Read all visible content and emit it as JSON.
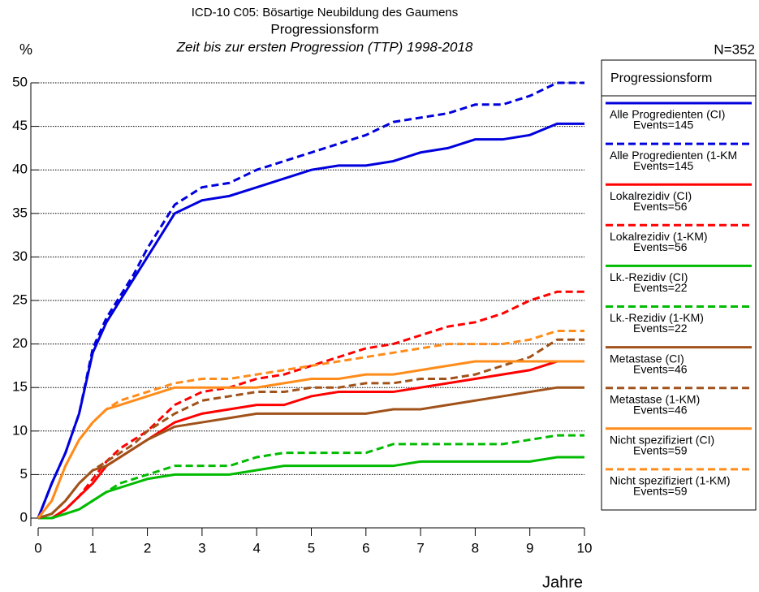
{
  "chart_data": {
    "type": "line",
    "title": "ICD-10 C05: Bösartige Neubildung des Gaumens",
    "subtitle": "Progressionsform",
    "subtitle2": "Zeit bis zur ersten Progression (TTP) 1998-2018",
    "y_label": "%",
    "x_label": "Jahre",
    "n_label": "N=352",
    "legend_title": "Progressionsform",
    "xlim": [
      0,
      10
    ],
    "xticks": [
      0,
      1,
      2,
      3,
      4,
      5,
      6,
      7,
      8,
      9,
      10
    ],
    "ylim": [
      0,
      50
    ],
    "yticks": [
      0,
      5,
      10,
      15,
      20,
      25,
      30,
      35,
      40,
      45,
      50
    ],
    "grid": true,
    "x": [
      0,
      0.25,
      0.5,
      0.75,
      1,
      1.25,
      1.5,
      1.75,
      2,
      2.5,
      3,
      3.5,
      4,
      4.5,
      5,
      5.5,
      6,
      6.5,
      7,
      7.5,
      8,
      8.5,
      9,
      9.5,
      10
    ],
    "series": [
      {
        "name": "Alle Progredienten (CI)",
        "note": "Events=145",
        "color": "#0000dd",
        "dashed": false,
        "values": [
          0,
          4,
          7.5,
          12,
          19,
          22.5,
          25,
          27.5,
          30,
          35,
          36.5,
          37,
          38,
          39,
          40,
          40.5,
          40.5,
          41,
          42,
          42.5,
          43.5,
          43.5,
          44,
          45.3,
          45.3
        ]
      },
      {
        "name": "Alle Progredienten (1-KM",
        "note": "Events=145",
        "color": "#0000dd",
        "dashed": true,
        "values": [
          0,
          4,
          7.5,
          12,
          19.5,
          23,
          25.5,
          28,
          31,
          36,
          38,
          38.5,
          40,
          41,
          42,
          43,
          44,
          45.5,
          46,
          46.5,
          47.5,
          47.5,
          48.5,
          50,
          50
        ]
      },
      {
        "name": "Lokalrezidiv (CI)",
        "note": "Events=56",
        "color": "#ff0000",
        "dashed": false,
        "values": [
          0,
          0,
          1,
          2.5,
          4,
          6,
          7,
          8,
          9,
          11,
          12,
          12.5,
          13,
          13,
          14,
          14.5,
          14.5,
          14.5,
          15,
          15.5,
          16,
          16.5,
          17,
          18,
          18
        ]
      },
      {
        "name": "Lokalrezidiv (1-KM)",
        "note": "Events=56",
        "color": "#ff0000",
        "dashed": true,
        "values": [
          0,
          0,
          1,
          2.5,
          4.5,
          6.5,
          8,
          9,
          10,
          13,
          14.5,
          15,
          16,
          16.5,
          17.5,
          18.5,
          19.5,
          20,
          21,
          22,
          22.5,
          23.5,
          25,
          26,
          26
        ]
      },
      {
        "name": "Lk.-Rezidiv (CI)",
        "note": "Events=22",
        "color": "#00bb00",
        "dashed": false,
        "values": [
          0,
          0,
          0.5,
          1,
          2,
          3,
          3.5,
          4,
          4.5,
          5,
          5,
          5,
          5.5,
          6,
          6,
          6,
          6,
          6,
          6.5,
          6.5,
          6.5,
          6.5,
          6.5,
          7,
          7
        ]
      },
      {
        "name": "Lk.-Rezidiv (1-KM)",
        "note": "Events=22",
        "color": "#00bb00",
        "dashed": true,
        "values": [
          0,
          0,
          0.5,
          1,
          2,
          3,
          4,
          4.5,
          5,
          6,
          6,
          6,
          7,
          7.5,
          7.5,
          7.5,
          7.5,
          8.5,
          8.5,
          8.5,
          8.5,
          8.5,
          9,
          9.5,
          9.5
        ]
      },
      {
        "name": "Metastase (CI)",
        "note": "Events=46",
        "color": "#a0521a",
        "dashed": false,
        "values": [
          0,
          0.5,
          2,
          4,
          5.5,
          6,
          7,
          8,
          9,
          10.5,
          11,
          11.5,
          12,
          12,
          12,
          12,
          12,
          12.5,
          12.5,
          13,
          13.5,
          14,
          14.5,
          15,
          15
        ]
      },
      {
        "name": "Metastase (1-KM)",
        "note": "Events=46",
        "color": "#a0521a",
        "dashed": true,
        "values": [
          0,
          0.5,
          2,
          4,
          5.5,
          6.5,
          7.5,
          8.5,
          10,
          12,
          13.5,
          14,
          14.5,
          14.5,
          15,
          15,
          15.5,
          15.5,
          16,
          16,
          16.5,
          17.5,
          18.5,
          20.5,
          20.5
        ]
      },
      {
        "name": "Nicht spezifiziert (CI)",
        "note": "Events=59",
        "color": "#ff8c1a",
        "dashed": false,
        "values": [
          0,
          2,
          6,
          9,
          11,
          12.5,
          13,
          13.5,
          14,
          15,
          15,
          15,
          15,
          15.5,
          16,
          16,
          16.5,
          16.5,
          17,
          17.5,
          18,
          18,
          18,
          18,
          18
        ]
      },
      {
        "name": "Nicht spezifiziert (1-KM)",
        "note": "Events=59",
        "color": "#ff8c1a",
        "dashed": true,
        "values": [
          0,
          2,
          6,
          9,
          11,
          12.5,
          13.5,
          14,
          14.5,
          15.5,
          16,
          16,
          16.5,
          17,
          17.5,
          18,
          18.5,
          19,
          19.5,
          20,
          20,
          20,
          20.5,
          21.5,
          21.5
        ]
      }
    ]
  }
}
